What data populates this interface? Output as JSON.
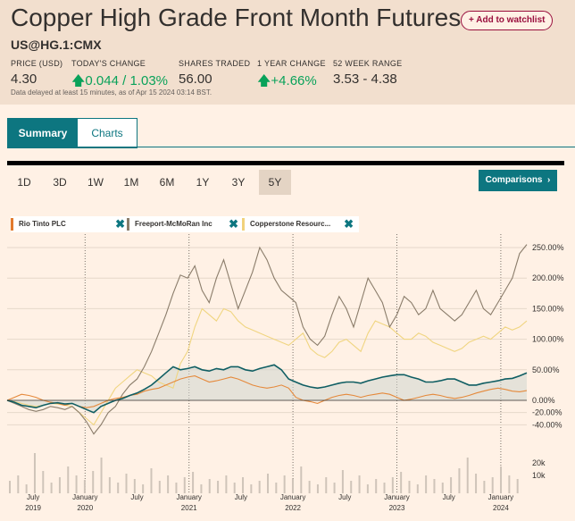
{
  "header": {
    "title": "Copper High Grade Front Month Futures",
    "watchlist_label": "+ Add to watchlist",
    "symbol": "US@HG.1:CMX"
  },
  "stats": [
    {
      "label": "PRICE (USD)",
      "value": "4.30",
      "arrow": ""
    },
    {
      "label": "TODAY'S CHANGE",
      "value": "0.044 / 1.03%",
      "arrow": "up"
    },
    {
      "label": "SHARES TRADED",
      "value": "56.00",
      "arrow": ""
    },
    {
      "label": "1 YEAR CHANGE",
      "value": "+4.66%",
      "arrow": "up"
    },
    {
      "label": "52 WEEK RANGE",
      "value": "3.53 - 4.38",
      "arrow": ""
    }
  ],
  "delay_note": "Data delayed at least 15 minutes, as of Apr 15 2024 03:14 BST.",
  "tabs": [
    {
      "label": "Summary",
      "active": true
    },
    {
      "label": "Charts",
      "active": false
    }
  ],
  "ranges": [
    "1D",
    "3D",
    "1W",
    "1M",
    "6M",
    "1Y",
    "3Y",
    "5Y"
  ],
  "selected_range": "5Y",
  "comparisons_label": "Comparisons",
  "comparison_chips": [
    {
      "label": "Rio Tinto PLC",
      "color": "#e27a2e"
    },
    {
      "label": "Freeport-McMoRan Inc",
      "color": "#8a7c6a"
    },
    {
      "label": "Copperstone Resourc...",
      "color": "#f1d27c"
    }
  ],
  "colors": {
    "main": "#0f5e63",
    "rio": "#e5893b",
    "freeport": "#8a7c6a",
    "copperstone": "#f0d580",
    "accent": "#0d7680",
    "up": "#09a25a"
  },
  "chart_data": {
    "type": "line",
    "x_start": "2019-04",
    "x_end": "2024-04",
    "yticks": [
      "250.00%",
      "200.00%",
      "150.00%",
      "100.00%",
      "50.00%",
      "0.00%",
      "-20.00%",
      "-40.00%"
    ],
    "ytick_values": [
      250,
      200,
      150,
      100,
      50,
      0,
      -20,
      -40
    ],
    "volume_ticks": [
      "20k",
      "10k"
    ],
    "volume_tick_values": [
      20000,
      10000
    ],
    "x_month_labels": [
      "July",
      "January",
      "July",
      "January",
      "July",
      "January",
      "July",
      "January",
      "July",
      "January"
    ],
    "x_year_labels": [
      "2019",
      "2020",
      "2021",
      "2022",
      "2023",
      "2024"
    ],
    "series": [
      {
        "name": "Copper High Grade Front Month Futures",
        "values": [
          0,
          -3,
          -8,
          -10,
          -12,
          -8,
          -5,
          -4,
          -6,
          -5,
          -10,
          -15,
          -20,
          -10,
          -5,
          0,
          3,
          8,
          12,
          18,
          25,
          35,
          45,
          55,
          50,
          52,
          55,
          50,
          48,
          52,
          50,
          55,
          55,
          50,
          48,
          52,
          55,
          58,
          50,
          35,
          30,
          25,
          22,
          20,
          22,
          25,
          28,
          30,
          30,
          28,
          32,
          35,
          38,
          40,
          42,
          42,
          38,
          35,
          30,
          30,
          32,
          35,
          35,
          30,
          25,
          25,
          28,
          30,
          32,
          35,
          36,
          40,
          45
        ]
      },
      {
        "name": "Rio Tinto PLC",
        "values": [
          0,
          5,
          10,
          8,
          5,
          0,
          -3,
          -5,
          -8,
          -5,
          -10,
          -12,
          -10,
          -5,
          0,
          3,
          5,
          8,
          10,
          15,
          18,
          20,
          25,
          30,
          35,
          38,
          40,
          35,
          30,
          32,
          35,
          38,
          35,
          30,
          25,
          22,
          20,
          22,
          25,
          20,
          5,
          0,
          -2,
          -5,
          0,
          5,
          8,
          10,
          8,
          5,
          8,
          10,
          12,
          10,
          5,
          0,
          2,
          5,
          8,
          10,
          8,
          5,
          3,
          5,
          8,
          12,
          15,
          18,
          20,
          18,
          15,
          14,
          16
        ]
      },
      {
        "name": "Freeport-McMoRan Inc",
        "values": [
          0,
          -5,
          -10,
          -15,
          -18,
          -15,
          -10,
          -12,
          -15,
          -10,
          -20,
          -35,
          -55,
          -40,
          -20,
          -10,
          10,
          25,
          35,
          55,
          80,
          110,
          140,
          175,
          205,
          200,
          220,
          180,
          160,
          200,
          230,
          190,
          150,
          180,
          210,
          250,
          230,
          200,
          180,
          170,
          160,
          120,
          100,
          90,
          105,
          140,
          170,
          150,
          120,
          160,
          200,
          180,
          160,
          120,
          140,
          170,
          160,
          140,
          150,
          180,
          150,
          140,
          130,
          140,
          160,
          180,
          150,
          140,
          160,
          180,
          200,
          240,
          255
        ]
      },
      {
        "name": "Copperstone Resources",
        "values": [
          0,
          -2,
          -5,
          -8,
          -10,
          -8,
          -5,
          -6,
          -8,
          -10,
          -20,
          -30,
          -40,
          -20,
          0,
          20,
          30,
          40,
          50,
          45,
          40,
          30,
          25,
          20,
          60,
          80,
          120,
          150,
          140,
          130,
          150,
          145,
          130,
          120,
          115,
          110,
          105,
          100,
          95,
          90,
          100,
          110,
          85,
          75,
          70,
          80,
          95,
          100,
          90,
          80,
          110,
          130,
          125,
          120,
          110,
          100,
          100,
          110,
          105,
          95,
          90,
          85,
          80,
          85,
          95,
          100,
          105,
          100,
          110,
          120,
          115,
          120,
          130
        ]
      }
    ]
  }
}
